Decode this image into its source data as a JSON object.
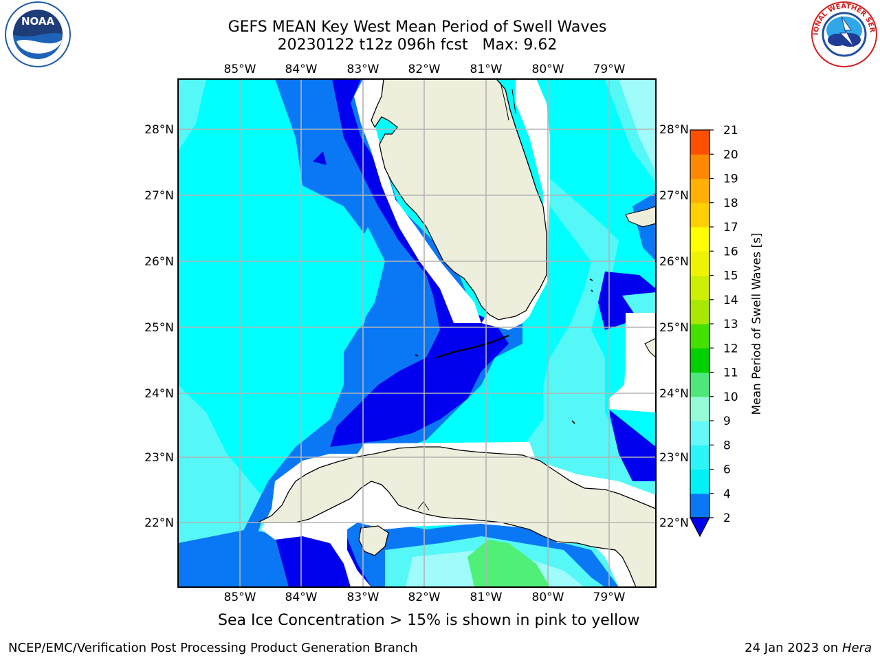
{
  "header": {
    "title_line1": "GEFS MEAN Key West Mean Period of Swell Waves",
    "title_line2": "20230122 t12z 096h fcst   Max: 9.62"
  },
  "logos": {
    "left": "noaa-logo",
    "left_text": "NOAA",
    "right": "national-weather-service-logo",
    "right_text": "NATIONAL WEATHER SERVICE"
  },
  "map": {
    "lon_labels": [
      "85°W",
      "84°W",
      "83°W",
      "82°W",
      "81°W",
      "80°W",
      "79°W"
    ],
    "lat_labels": [
      "28°N",
      "27°N",
      "26°N",
      "25°N",
      "24°N",
      "23°N",
      "22°N"
    ],
    "extent": {
      "lon_min": -86.0,
      "lon_max": -78.25,
      "lat_min": 21.0,
      "lat_max": 28.8
    },
    "colors": {
      "land": "#eeeedc",
      "grid": "#b4b4b4",
      "blue_2_4": "#0000ee",
      "blue_4": "#0a78f5",
      "cyan_4_6": "#00ffff",
      "cyan_6_8": "#55f7f7",
      "cyan_8_9": "#a0fbfb",
      "green_9_10": "#50f078"
    }
  },
  "colorbar": {
    "label": "Mean Period of Swell Waves [s]",
    "ticks": [
      "2",
      "4",
      "6",
      "8",
      "9",
      "10",
      "11",
      "12",
      "13",
      "14",
      "15",
      "16",
      "17",
      "18",
      "19",
      "20",
      "21"
    ],
    "colors": [
      "#0a78f5",
      "#00f0f8",
      "#2ef5f5",
      "#66f8f8",
      "#96fcd8",
      "#4ee87a",
      "#00d000",
      "#44e000",
      "#a8e800",
      "#ccee00",
      "#eef400",
      "#ffff00",
      "#ffd000",
      "#ffb000",
      "#ff8800",
      "#ff5000",
      "#ff2000",
      "#ff0000"
    ],
    "under_color": "#0000ee"
  },
  "note": "Sea Ice Concentration > 15% is shown in pink to yellow",
  "footer": {
    "left": "NCEP/EMC/Verification Post Processing Product Generation Branch",
    "right_date": "24 Jan 2023 on ",
    "right_host": "Hera"
  }
}
